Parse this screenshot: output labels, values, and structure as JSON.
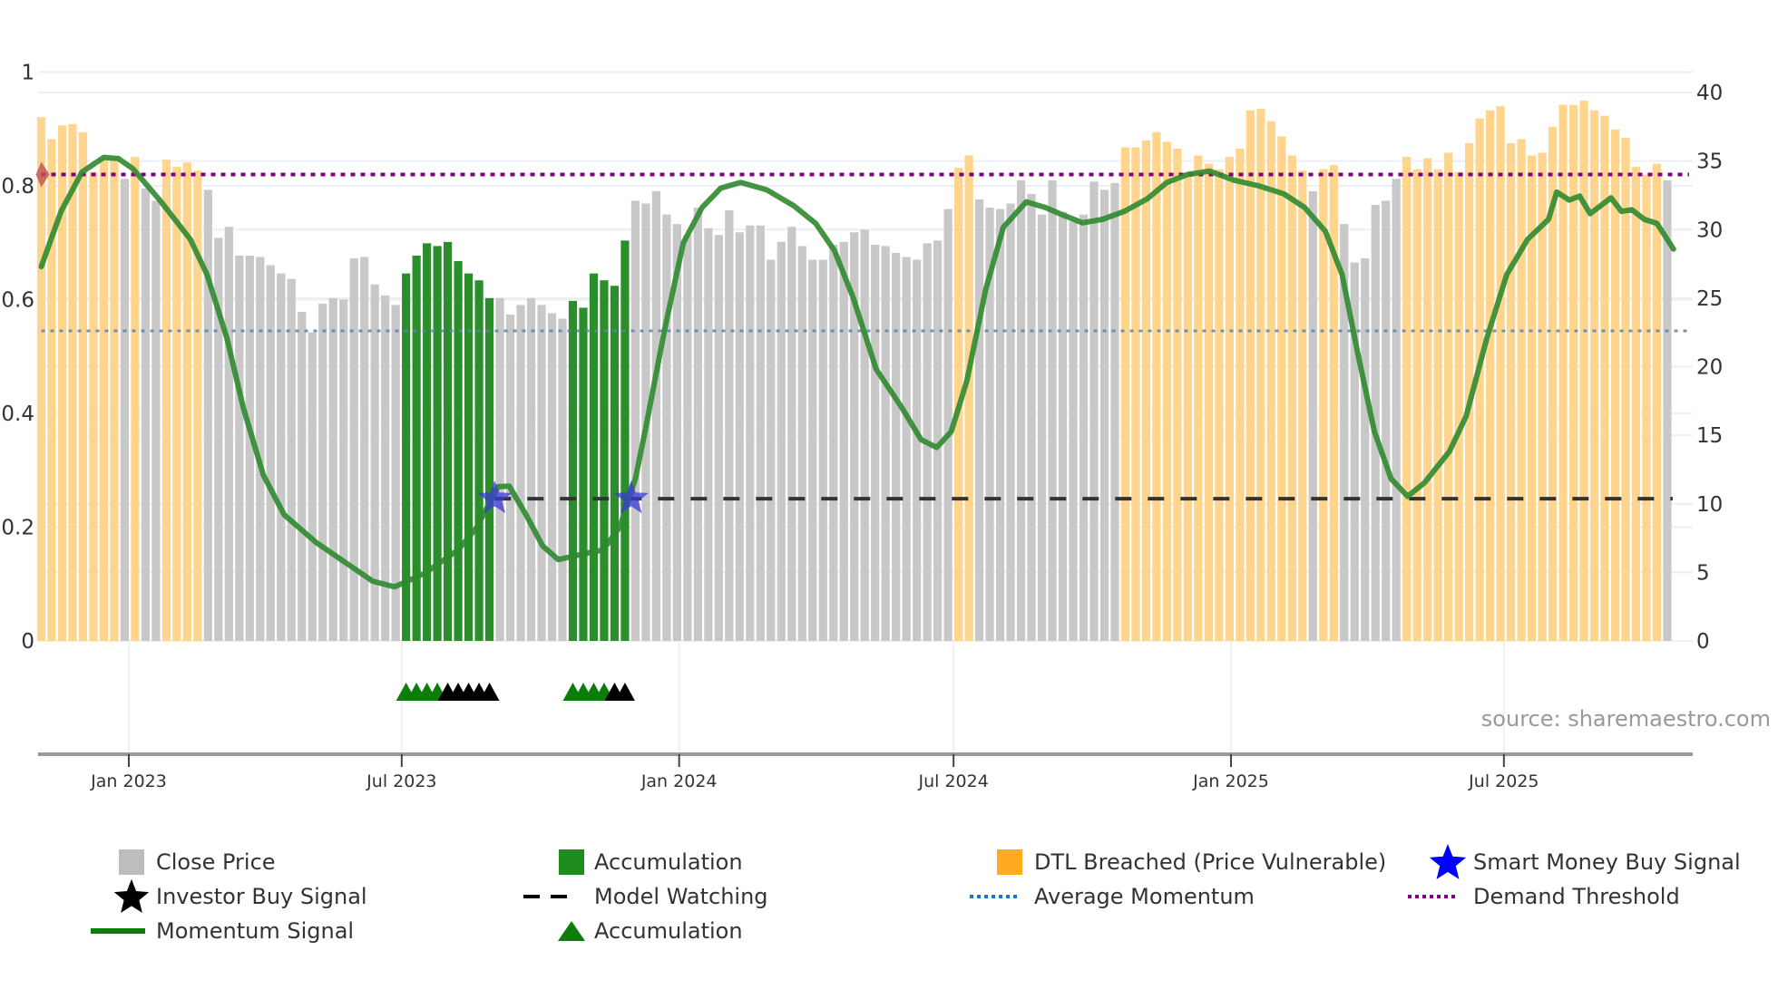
{
  "chart_data": {
    "type": "bar",
    "title": "",
    "source_note": "source: sharemaestro.com",
    "left_axis": {
      "ticks": [
        "0",
        "0.2",
        "0.4",
        "0.6",
        "0.8",
        "1"
      ],
      "range": [
        0,
        1
      ]
    },
    "right_axis": {
      "ticks": [
        "0",
        "5",
        "10",
        "15",
        "20",
        "25",
        "30",
        "35",
        "40"
      ],
      "range": [
        0,
        40
      ]
    },
    "x_axis": {
      "first_bar_date": "2022-11-03",
      "interval": "weekly",
      "ticks": [
        {
          "label": "Jan 2023",
          "date": "2023-01-01"
        },
        {
          "label": "Jul 2023",
          "date": "2023-07-01"
        },
        {
          "label": "Jan 2024",
          "date": "2024-01-01"
        },
        {
          "label": "Jul 2024",
          "date": "2024-07-01"
        },
        {
          "label": "Jan 2025",
          "date": "2025-01-01"
        },
        {
          "label": "Jul 2025",
          "date": "2025-07-01"
        }
      ]
    },
    "colors": {
      "price": "#c8c8c8",
      "accumulation": "#2a8f2a",
      "dtl": "#ffd48c",
      "momentum": "#2f8a2f",
      "average": "#5b86a6",
      "threshold": "#800080",
      "watching": "#333333",
      "smart_money": "#3a3ad8",
      "investor": "#000000",
      "acc_marker": "#0a7d0a",
      "threshold_marker": "#c0504d"
    },
    "bars": {
      "axis": "right",
      "values": [
        38.2,
        36.6,
        37.6,
        37.7,
        37.1,
        34.2,
        35.2,
        35.2,
        33.7,
        35.3,
        33.0,
        32.1,
        35.1,
        34.6,
        34.9,
        34.3,
        32.9,
        29.4,
        30.2,
        28.1,
        28.1,
        28.0,
        27.4,
        26.8,
        26.4,
        24.0,
        22.5,
        24.6,
        25.0,
        24.9,
        27.9,
        28.0,
        26.0,
        25.2,
        24.5,
        26.8,
        28.1,
        29.0,
        28.8,
        29.1,
        27.7,
        26.8,
        26.3,
        25.0,
        25.0,
        23.8,
        24.5,
        25.0,
        24.5,
        23.9,
        23.5,
        24.8,
        24.3,
        26.8,
        26.3,
        25.9,
        29.2,
        32.1,
        31.9,
        32.8,
        31.1,
        30.4,
        29.6,
        31.6,
        30.1,
        29.6,
        31.4,
        29.8,
        30.3,
        30.3,
        27.8,
        29.1,
        30.2,
        28.8,
        27.8,
        27.8,
        28.9,
        29.1,
        29.8,
        30.0,
        28.9,
        28.8,
        28.3,
        28.0,
        27.8,
        29.0,
        29.2,
        31.5,
        34.5,
        35.4,
        32.2,
        31.6,
        31.5,
        31.9,
        33.6,
        32.6,
        31.1,
        33.6,
        31.3,
        30.6,
        31.1,
        33.5,
        32.9,
        33.4,
        36.0,
        36.0,
        36.5,
        37.1,
        36.4,
        35.9,
        34.2,
        35.4,
        34.8,
        34.4,
        35.3,
        35.9,
        38.7,
        38.8,
        37.9,
        36.8,
        35.4,
        34.3,
        32.8,
        34.4,
        34.7,
        30.4,
        27.6,
        27.9,
        31.8,
        32.1,
        33.7,
        35.3,
        34.4,
        35.2,
        34.4,
        35.6,
        34.2,
        36.3,
        38.1,
        38.7,
        39.0,
        36.3,
        36.6,
        35.4,
        35.6,
        37.5,
        39.1,
        39.1,
        39.4,
        38.7,
        38.3,
        37.3,
        36.7,
        34.6,
        34.0,
        34.8,
        33.6
      ],
      "segments": [
        {
          "category": "dtl",
          "count": 8
        },
        {
          "category": "price",
          "count": 1
        },
        {
          "category": "dtl",
          "count": 1
        },
        {
          "category": "price",
          "count": 2
        },
        {
          "category": "dtl",
          "count": 4
        },
        {
          "category": "price",
          "count": 19
        },
        {
          "category": "accumulation",
          "count": 9
        },
        {
          "category": "price",
          "count": 7
        },
        {
          "category": "accumulation",
          "count": 6
        },
        {
          "category": "price",
          "count": 31
        },
        {
          "category": "dtl",
          "count": 2
        },
        {
          "category": "price",
          "count": 14
        },
        {
          "category": "dtl",
          "count": 18
        },
        {
          "category": "price",
          "count": 1
        },
        {
          "category": "dtl",
          "count": 2
        },
        {
          "category": "price",
          "count": 6
        },
        {
          "category": "dtl",
          "count": 25
        },
        {
          "category": "price",
          "count": 1
        }
      ]
    },
    "momentum": {
      "axis": "left",
      "points": [
        [
          0,
          0.658
        ],
        [
          1.9,
          0.755
        ],
        [
          3.9,
          0.824
        ],
        [
          6,
          0.85
        ],
        [
          7.4,
          0.848
        ],
        [
          8.8,
          0.83
        ],
        [
          11.5,
          0.772
        ],
        [
          14.3,
          0.706
        ],
        [
          15.9,
          0.644
        ],
        [
          17.8,
          0.533
        ],
        [
          19.4,
          0.409
        ],
        [
          21.3,
          0.292
        ],
        [
          23.3,
          0.222
        ],
        [
          26.3,
          0.174
        ],
        [
          29,
          0.14
        ],
        [
          31.8,
          0.105
        ],
        [
          33.9,
          0.095
        ],
        [
          36.8,
          0.119
        ],
        [
          40,
          0.16
        ],
        [
          41.8,
          0.2
        ],
        [
          43.8,
          0.271
        ],
        [
          44.9,
          0.272
        ],
        [
          46.5,
          0.222
        ],
        [
          48.1,
          0.167
        ],
        [
          49.6,
          0.143
        ],
        [
          52,
          0.153
        ],
        [
          53.9,
          0.16
        ],
        [
          55.5,
          0.2
        ],
        [
          57,
          0.285
        ],
        [
          58,
          0.375
        ],
        [
          59.8,
          0.547
        ],
        [
          61.6,
          0.7
        ],
        [
          63.4,
          0.762
        ],
        [
          65.2,
          0.796
        ],
        [
          67.1,
          0.806
        ],
        [
          69.6,
          0.793
        ],
        [
          72.2,
          0.765
        ],
        [
          74.3,
          0.734
        ],
        [
          76.1,
          0.686
        ],
        [
          77.9,
          0.603
        ],
        [
          80.1,
          0.478
        ],
        [
          82.6,
          0.409
        ],
        [
          84.4,
          0.354
        ],
        [
          85.9,
          0.34
        ],
        [
          87.3,
          0.368
        ],
        [
          88.8,
          0.457
        ],
        [
          90.6,
          0.617
        ],
        [
          92.3,
          0.727
        ],
        [
          94.5,
          0.772
        ],
        [
          96.3,
          0.762
        ],
        [
          98.1,
          0.748
        ],
        [
          99.9,
          0.735
        ],
        [
          101.8,
          0.741
        ],
        [
          103.9,
          0.755
        ],
        [
          106.1,
          0.777
        ],
        [
          108,
          0.806
        ],
        [
          110,
          0.82
        ],
        [
          112.1,
          0.826
        ],
        [
          114.4,
          0.81
        ],
        [
          116.8,
          0.8
        ],
        [
          119.2,
          0.786
        ],
        [
          121.2,
          0.762
        ],
        [
          123.2,
          0.72
        ],
        [
          124.8,
          0.644
        ],
        [
          126.3,
          0.506
        ],
        [
          127.9,
          0.368
        ],
        [
          129.5,
          0.285
        ],
        [
          131.1,
          0.254
        ],
        [
          132.7,
          0.278
        ],
        [
          135.1,
          0.333
        ],
        [
          136.7,
          0.395
        ],
        [
          138.7,
          0.533
        ],
        [
          140.6,
          0.644
        ],
        [
          142.6,
          0.706
        ],
        [
          144.6,
          0.741
        ],
        [
          145.4,
          0.789
        ],
        [
          146.6,
          0.775
        ],
        [
          147.6,
          0.782
        ],
        [
          148.6,
          0.751
        ],
        [
          150.6,
          0.779
        ],
        [
          151.6,
          0.755
        ],
        [
          152.6,
          0.758
        ],
        [
          153.8,
          0.741
        ],
        [
          155,
          0.734
        ],
        [
          156.6,
          0.689
        ]
      ]
    },
    "average_momentum": 0.545,
    "demand_threshold": 0.82,
    "model_watching": {
      "value": 0.25,
      "from_index": 43.5
    },
    "smart_money_signals": [
      {
        "index": 43.5,
        "value": 0.25
      },
      {
        "index": 56.6,
        "value": 0.25
      }
    ],
    "accumulation_markers": [
      35,
      36,
      37,
      38,
      51,
      52,
      53,
      54
    ],
    "investor_markers": [
      39,
      40,
      41,
      42,
      43,
      55,
      56
    ],
    "legend": [
      {
        "label": "Close Price",
        "icon": "square-gray"
      },
      {
        "label": "Accumulation",
        "icon": "square-green"
      },
      {
        "label": "DTL Breached (Price Vulnerable)",
        "icon": "square-orange"
      },
      {
        "label": "Smart Money Buy Signal",
        "icon": "star-blue"
      },
      {
        "label": "Investor Buy Signal",
        "icon": "star-black"
      },
      {
        "label": "Model Watching",
        "icon": "dash-black"
      },
      {
        "label": "Average Momentum",
        "icon": "dot-blue"
      },
      {
        "label": "Demand Threshold",
        "icon": "dot-purple"
      },
      {
        "label": "Momentum Signal",
        "icon": "line-green"
      },
      {
        "label": "Accumulation",
        "icon": "triangle-green"
      }
    ]
  }
}
